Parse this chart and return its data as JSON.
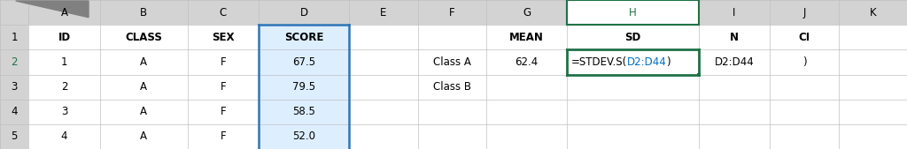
{
  "col_labels": [
    "",
    "A",
    "B",
    "C",
    "D",
    "E",
    "F",
    "G",
    "H",
    "I",
    "J",
    "K"
  ],
  "row_labels": [
    "1",
    "2",
    "3",
    "4",
    "5"
  ],
  "header_row": [
    "ID",
    "CLASS",
    "SEX",
    "SCORE",
    "",
    "",
    "MEAN",
    "SD",
    "N",
    "CI",
    ""
  ],
  "rows": [
    [
      "1",
      "A",
      "F",
      "67.5",
      "",
      "Class A",
      "62.4",
      "=STDEV.S(",
      "D2:D44",
      ")",
      "",
      ""
    ],
    [
      "2",
      "A",
      "F",
      "79.5",
      "",
      "Class B",
      "",
      "",
      "",
      "",
      "",
      ""
    ],
    [
      "3",
      "A",
      "F",
      "58.5",
      "",
      "",
      "",
      "",
      "",
      "",
      "",
      ""
    ],
    [
      "4",
      "A",
      "F",
      "52.0",
      "",
      "",
      "",
      "",
      "",
      "",
      "",
      ""
    ]
  ],
  "col_widths_raw": [
    0.3,
    0.75,
    0.92,
    0.75,
    0.95,
    0.72,
    0.72,
    0.85,
    1.38,
    0.75,
    0.72,
    0.72
  ],
  "header_bg": "#d3d3d3",
  "h_col_header_bg": "#ffffff",
  "h_col_header_fg": "#1f7145",
  "h_col_header_border": "#1f7145",
  "d_col_fill": "#ddeeff",
  "selected_cell_border": "#1f7145",
  "selected_cell_bg": "#ffffff",
  "d_border_color": "#2e75b6",
  "row2_label_color": "#1f7145",
  "formula_black": "#000000",
  "formula_blue": "#0070c0",
  "grid_color": "#c0c0c0",
  "text_color": "#000000",
  "background_color": "#ffffff",
  "font_size": 8.5,
  "bold_headers": [
    "ID",
    "CLASS",
    "SEX",
    "SCORE",
    "MEAN",
    "SD",
    "N",
    "CI"
  ]
}
